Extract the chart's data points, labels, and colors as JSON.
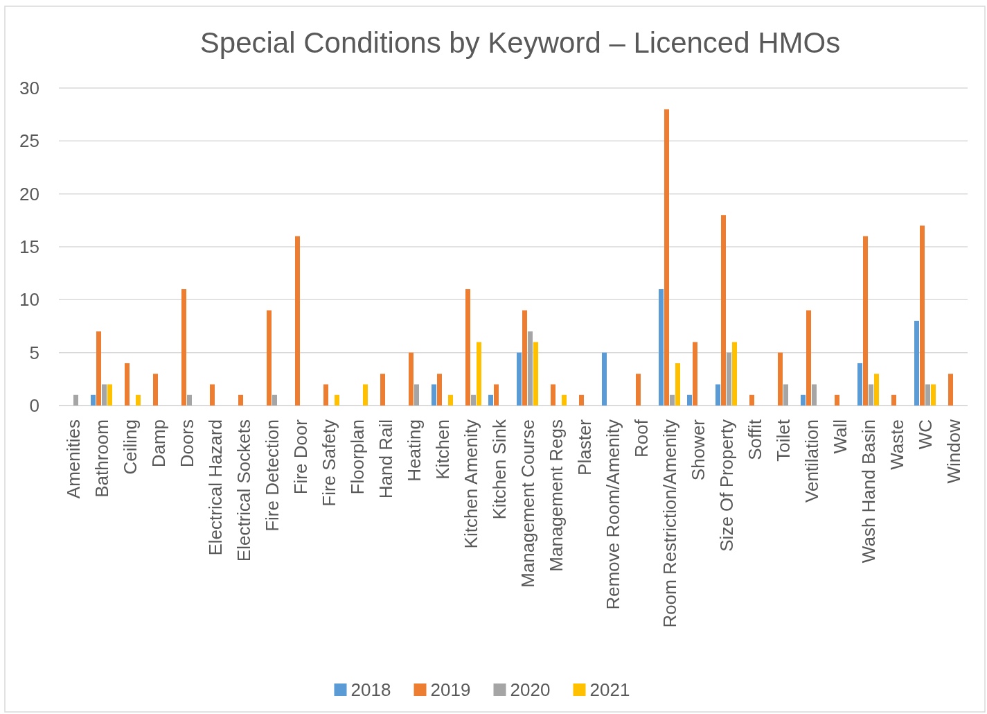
{
  "chart_data": {
    "type": "bar",
    "title": "Special Conditions by Keyword – Licenced HMOs",
    "categories": [
      "Amenities",
      "Bathroom",
      "Ceiling",
      "Damp",
      "Doors",
      "Electrical Hazard",
      "Electrical Sockets",
      "Fire Detection",
      "Fire Door",
      "Fire Safety",
      "Floorplan",
      "Hand Rail",
      "Heating",
      "Kitchen",
      "Kitchen Amenity",
      "Kitchen Sink",
      "Management Course",
      "Management Regs",
      "Plaster",
      "Remove Room/Amenity",
      "Roof",
      "Room Restriction/Amenity",
      "Shower",
      "Size Of Property",
      "Soffit",
      "Toilet",
      "Ventilation",
      "Wall",
      "Wash Hand Basin",
      "Waste",
      "WC",
      "Window"
    ],
    "series": [
      {
        "name": "2018",
        "color": "#5b9bd5",
        "values": [
          null,
          1,
          null,
          null,
          null,
          null,
          null,
          null,
          null,
          null,
          null,
          null,
          null,
          2,
          null,
          1,
          5,
          null,
          null,
          5,
          null,
          11,
          1,
          2,
          null,
          null,
          1,
          null,
          4,
          null,
          8,
          null
        ]
      },
      {
        "name": "2019",
        "color": "#ed7d31",
        "values": [
          null,
          7,
          4,
          3,
          11,
          2,
          1,
          9,
          16,
          2,
          null,
          3,
          5,
          3,
          11,
          2,
          9,
          2,
          1,
          null,
          3,
          28,
          6,
          18,
          1,
          5,
          9,
          1,
          16,
          1,
          17,
          3
        ]
      },
      {
        "name": "2020",
        "color": "#a5a5a5",
        "values": [
          1,
          2,
          null,
          null,
          1,
          null,
          null,
          1,
          null,
          null,
          null,
          null,
          2,
          null,
          1,
          null,
          7,
          null,
          null,
          null,
          null,
          1,
          null,
          5,
          null,
          2,
          2,
          null,
          2,
          null,
          2,
          null
        ]
      },
      {
        "name": "2021",
        "color": "#ffc000",
        "values": [
          null,
          2,
          1,
          null,
          null,
          null,
          null,
          null,
          null,
          1,
          2,
          null,
          null,
          1,
          6,
          null,
          6,
          1,
          null,
          null,
          null,
          4,
          null,
          6,
          null,
          null,
          null,
          null,
          3,
          null,
          2,
          null
        ]
      }
    ],
    "ylim": [
      0,
      30
    ],
    "yticks": [
      0,
      5,
      10,
      15,
      20,
      25,
      30
    ],
    "grid": "y",
    "legend": "bottom"
  }
}
